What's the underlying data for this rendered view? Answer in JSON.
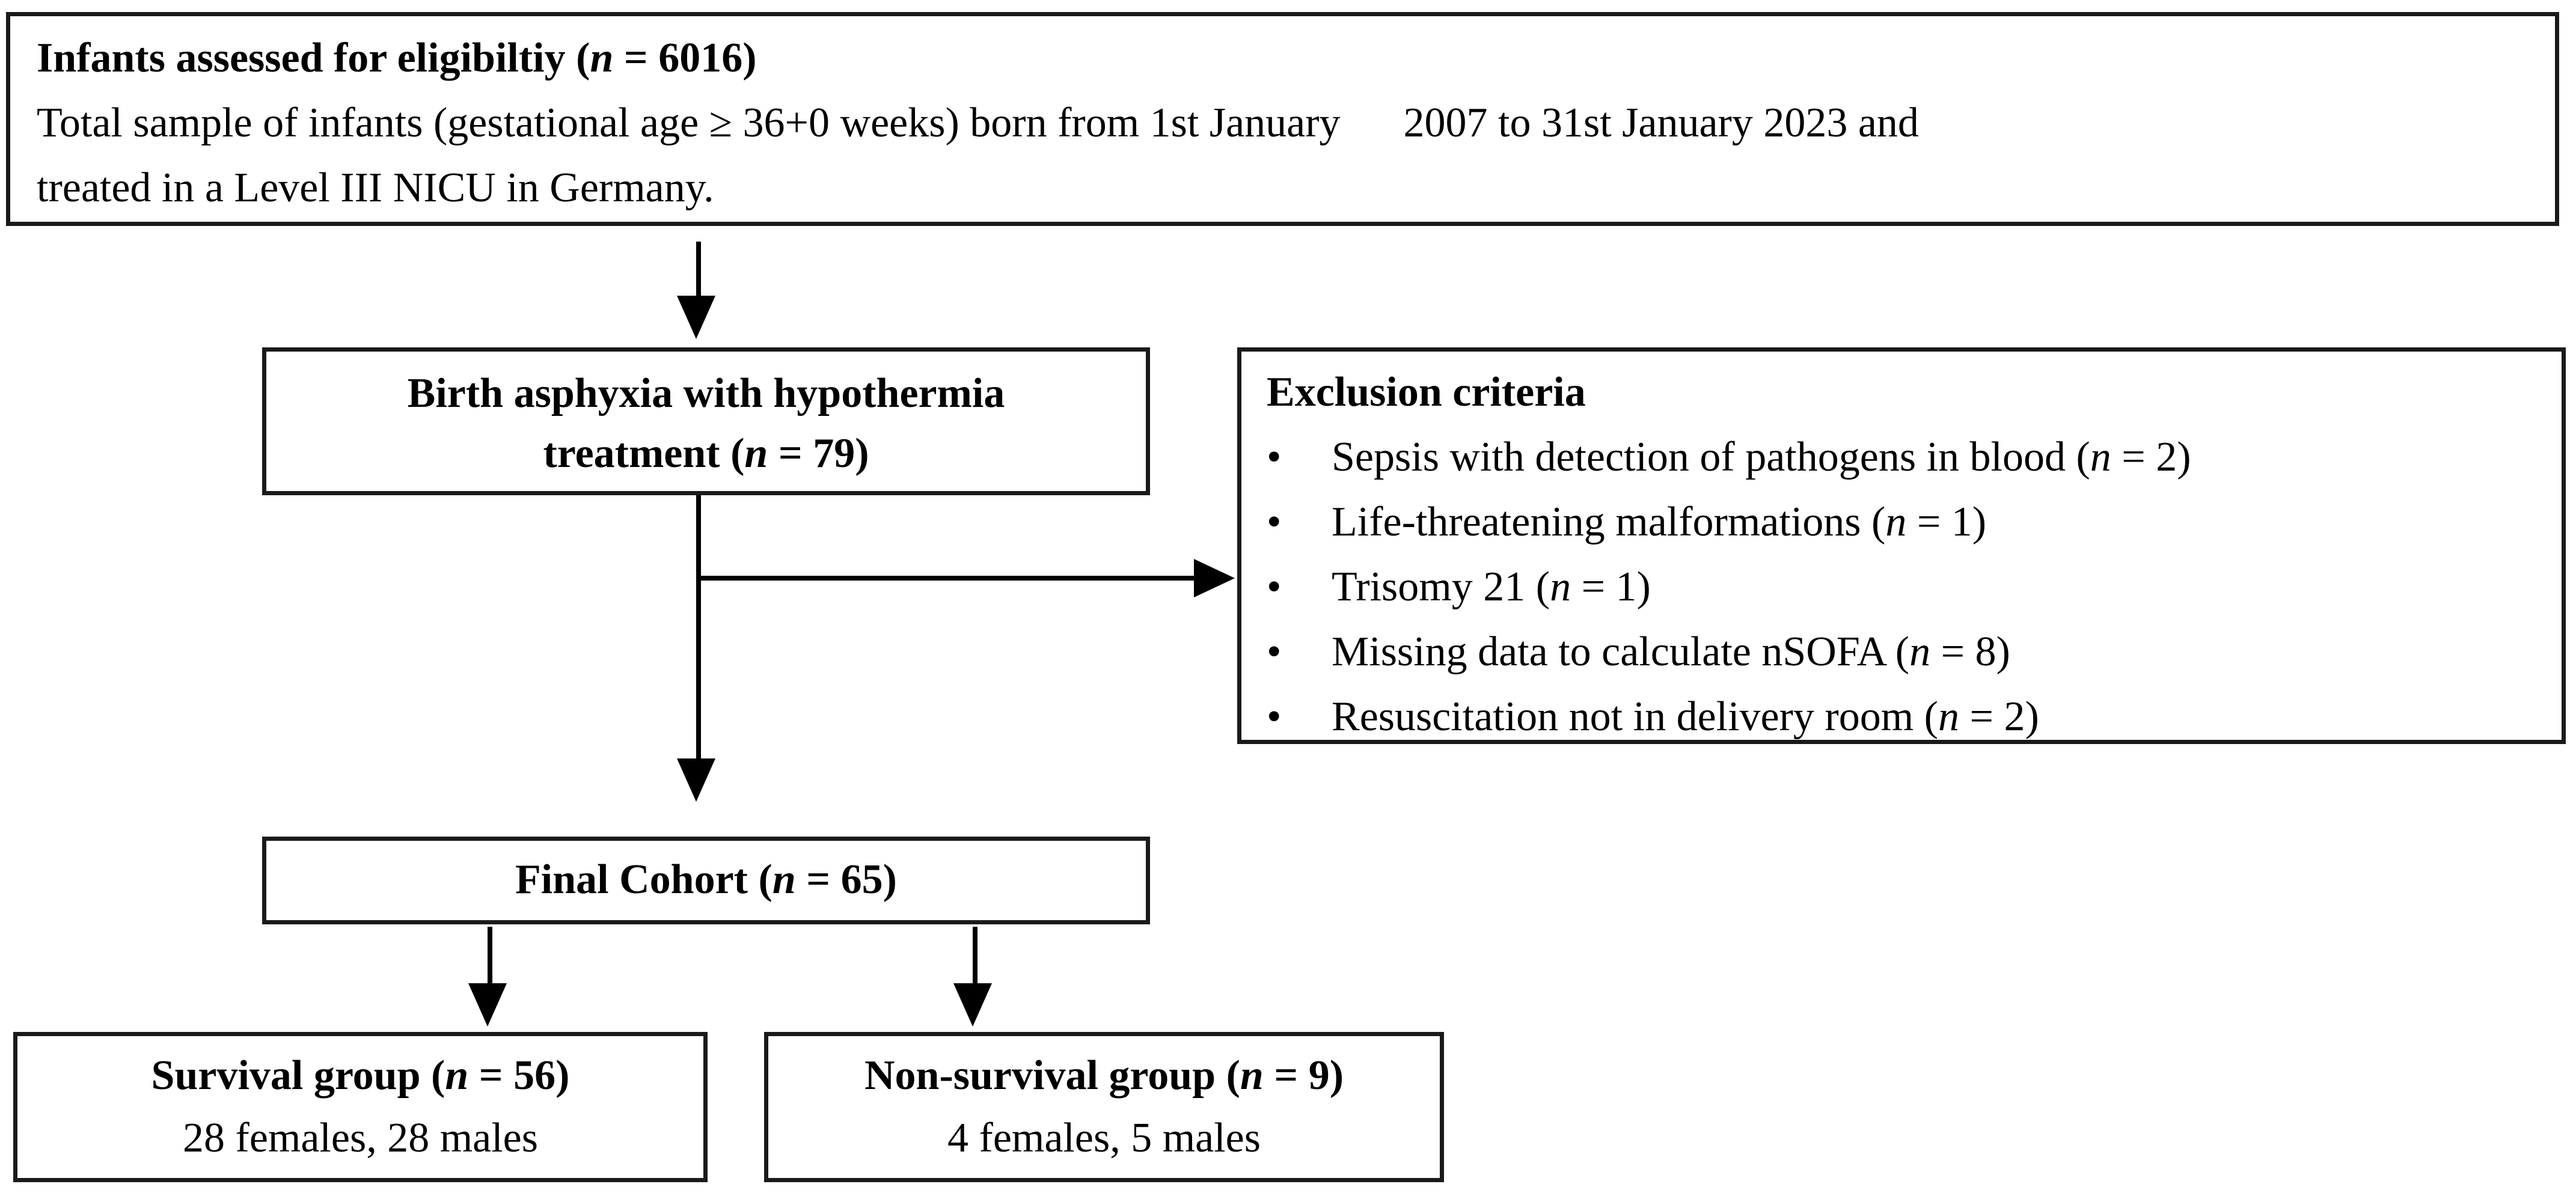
{
  "figure": {
    "background_color": "#ffffff",
    "line_color": "#000000",
    "bullet_char": "•",
    "boxes": {
      "eligibility": {
        "title": "Infants assessed for eligibiltiy (*n* = 6016)",
        "line2": "Total sample of infants (gestational age ≥ 36+0 weeks) born from 1st January      2007 to 31st January 2023 and",
        "line3": "treated in a Level III NICU in Germany."
      },
      "asphyxia": {
        "line1": "Birth asphyxia with hypothermia",
        "line2": "treatment (*n* = 79)"
      },
      "exclusion": {
        "title": "Exclusion criteria",
        "items": [
          "Sepsis with detection of pathogens in blood (*n* = 2)",
          "Life-threatening malformations (*n* = 1)",
          "Trisomy 21 (*n* = 1)",
          "Missing data to calculate nSOFA (*n* = 8)",
          "Resuscitation not in delivery room (*n* = 2)"
        ]
      },
      "final_cohort": {
        "line1": "Final Cohort (*n* = 65)"
      },
      "survival": {
        "line1": "Survival group (*n* = 56)",
        "line2": "28 females, 28 males"
      },
      "non_survival": {
        "line1": "Non-survival group (*n* = 9)",
        "line2": "4 females, 5 males"
      }
    }
  }
}
